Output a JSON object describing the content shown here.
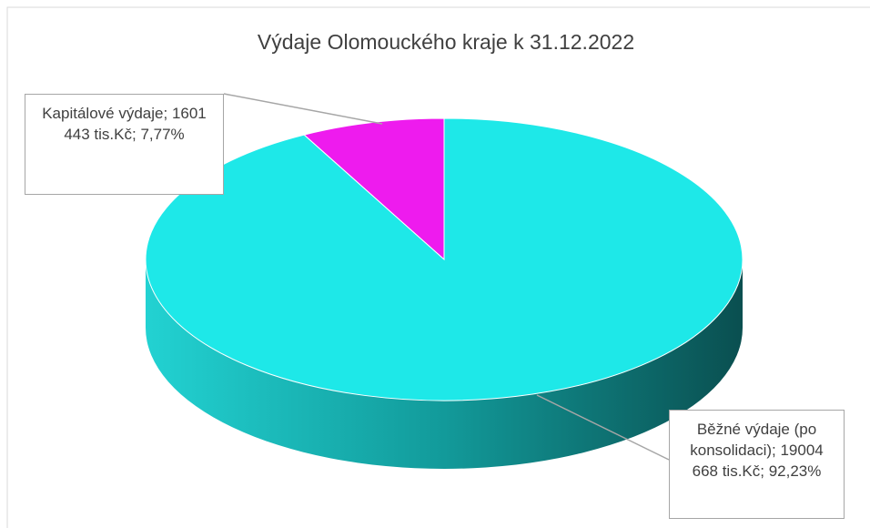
{
  "chart_data": {
    "type": "pie3d",
    "title": "Výdaje Olomouckého kraje k 31.12.2022",
    "categories": [
      "Kapitálové výdaje",
      "Běžné výdaje (po konsolidaci)"
    ],
    "values": [
      1601443,
      19004668
    ],
    "value_labels": [
      "1601 443 tis.Kč",
      "19004 668 tis.Kč"
    ],
    "percents": [
      7.77,
      92.23
    ],
    "percent_labels": [
      "7,77%",
      "92,23%"
    ],
    "label_separator": "; ",
    "colors": [
      "#ee1bee",
      "#1ee8e8"
    ]
  }
}
